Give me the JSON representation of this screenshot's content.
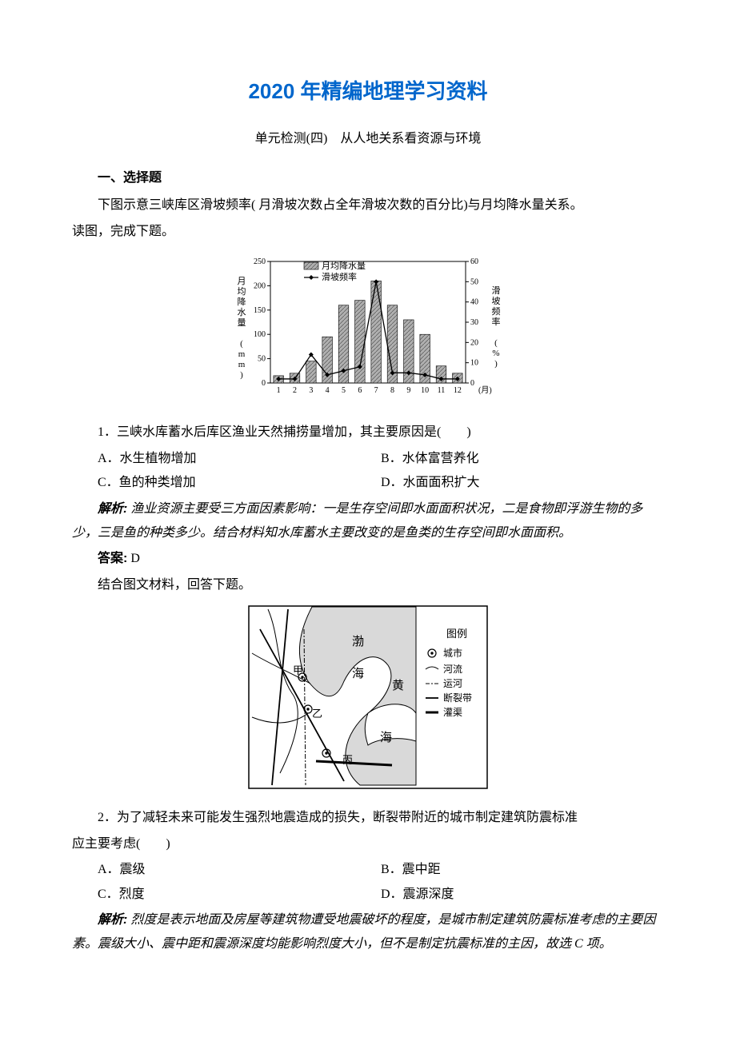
{
  "title_main": "2020 年精编地理学习资料",
  "subtitle": "单元检测(四)　从人地关系看资源与环境",
  "section1": "一、选择题",
  "intro1_a": "下图示意三峡库区滑坡频率(  月滑坡次数占全年滑坡次数的百分比)与月均降水量关系。",
  "intro1_b": "读图，完成下题。",
  "chart1": {
    "legend_bar": "月均降水量",
    "legend_line": "滑坡频率",
    "y_left_label": "月均降水量 (mm)",
    "y_right_label": "滑坡频率 (%)",
    "x_label": "(月)",
    "x_categories": [
      "1",
      "2",
      "3",
      "4",
      "5",
      "6",
      "7",
      "8",
      "9",
      "10",
      "11",
      "12"
    ],
    "y_left_ticks": [
      0,
      50,
      100,
      150,
      200,
      250
    ],
    "y_right_ticks": [
      0,
      10,
      20,
      30,
      40,
      50,
      60
    ],
    "bar_values": [
      15,
      20,
      45,
      95,
      160,
      170,
      210,
      160,
      130,
      100,
      35,
      20
    ],
    "line_values": [
      2,
      2,
      14,
      4,
      6,
      8,
      50,
      5,
      5,
      4,
      2,
      2
    ],
    "bar_color": "#b0b0b0",
    "bar_stroke": "#000000",
    "line_color": "#000000",
    "bg": "#ffffff",
    "axis_color": "#000000",
    "hatch": true,
    "y_left_max": 250,
    "y_right_max": 60,
    "font_size_axis": 10,
    "font_size_legend": 11
  },
  "q1": {
    "stem": "1．三峡水库蓄水后库区渔业天然捕捞量增加，其主要原因是(　　)",
    "A": "A．水生植物增加",
    "B": "B．水体富营养化",
    "C": "C．鱼的种类增加",
    "D": "D．水面面积扩大",
    "analysis_label": "解析:",
    "analysis": "渔业资源主要受三方面因素影响：一是生存空间即水面面积状况，二是食物即浮游生物的多少，三是鱼的种类多少。结合材料知水库蓄水主要改变的是鱼类的生存空间即水面面积。",
    "answer_label": "答案:",
    "answer": "D"
  },
  "intro2": "结合图文材料，回答下题。",
  "map1": {
    "labels": {
      "bohai": "渤",
      "hai1": "海",
      "huang": "黄",
      "hai2": "海",
      "jia": "甲",
      "yi": "乙",
      "bing": "丙",
      "legend_title": "图例",
      "city": "城市",
      "river": "河流",
      "canal": "运河",
      "fault": "断裂带",
      "channel": "灌渠"
    },
    "colors": {
      "sea": "#d9d9d9",
      "land": "#ffffff",
      "stroke": "#000000",
      "border": "#000000"
    }
  },
  "q2": {
    "stem_a": "2．为了减轻未来可能发生强烈地震造成的损失，断裂带附近的城市制定建筑防震标准",
    "stem_b": "应主要考虑(　　)",
    "A": "A．震级",
    "B": "B．震中距",
    "C": "C．烈度",
    "D": "D．震源深度",
    "analysis_label": "解析:",
    "analysis": "烈度是表示地面及房屋等建筑物遭受地震破坏的程度，是城市制定建筑防震标准考虑的主要因素。震级大小、震中距和震源深度均能影响烈度大小，但不是制定抗震标准的主因，故选 C 项。"
  }
}
